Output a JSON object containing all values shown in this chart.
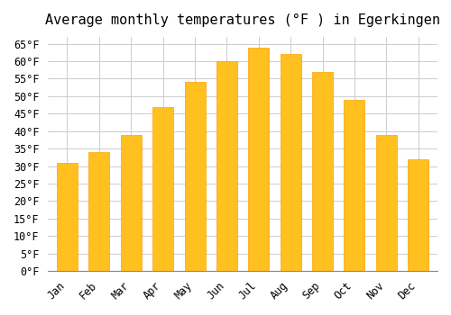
{
  "title": "Average monthly temperatures (°F ) in Egerkingen",
  "months": [
    "Jan",
    "Feb",
    "Mar",
    "Apr",
    "May",
    "Jun",
    "Jul",
    "Aug",
    "Sep",
    "Oct",
    "Nov",
    "Dec"
  ],
  "values": [
    31,
    34,
    39,
    47,
    54,
    60,
    64,
    62,
    57,
    49,
    39,
    32
  ],
  "bar_color": "#FFC020",
  "bar_edge_color": "#FFA000",
  "background_color": "#FFFFFF",
  "grid_color": "#CCCCCC",
  "ylim": [
    0,
    67
  ],
  "yticks": [
    0,
    5,
    10,
    15,
    20,
    25,
    30,
    35,
    40,
    45,
    50,
    55,
    60,
    65
  ],
  "ylabel_suffix": "°F",
  "title_fontsize": 11,
  "tick_fontsize": 8.5,
  "font_family": "monospace"
}
